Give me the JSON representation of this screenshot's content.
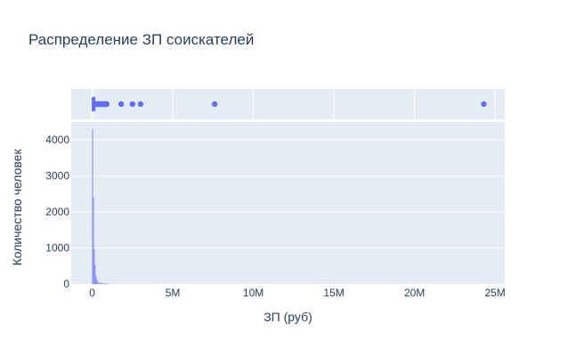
{
  "chart_data": {
    "type": "histogram",
    "title": "Распределение ЗП соискателей",
    "xlabel": "ЗП (руб)",
    "ylabel": "Количество человек",
    "xlim": [
      -1300000,
      25600000
    ],
    "ylim": [
      0,
      4500
    ],
    "x_ticks": [
      {
        "v": 0,
        "label": "0"
      },
      {
        "v": 5000000,
        "label": "5M"
      },
      {
        "v": 10000000,
        "label": "10M"
      },
      {
        "v": 15000000,
        "label": "15M"
      },
      {
        "v": 20000000,
        "label": "20M"
      },
      {
        "v": 25000000,
        "label": "25M"
      }
    ],
    "y_ticks": [
      {
        "v": 0,
        "label": "0"
      },
      {
        "v": 1000,
        "label": "1000"
      },
      {
        "v": 2000,
        "label": "2000"
      },
      {
        "v": 3000,
        "label": "3000"
      },
      {
        "v": 4000,
        "label": "4000"
      }
    ],
    "histogram": {
      "color": "#636efa",
      "bins": [
        {
          "x0": 0,
          "x1": 50000,
          "count": 4300
        },
        {
          "x0": 50000,
          "x1": 100000,
          "count": 2400
        },
        {
          "x0": 100000,
          "x1": 150000,
          "count": 950
        },
        {
          "x0": 150000,
          "x1": 200000,
          "count": 520
        },
        {
          "x0": 200000,
          "x1": 250000,
          "count": 220
        },
        {
          "x0": 250000,
          "x1": 300000,
          "count": 120
        },
        {
          "x0": 300000,
          "x1": 400000,
          "count": 60
        },
        {
          "x0": 400000,
          "x1": 600000,
          "count": 25
        },
        {
          "x0": 600000,
          "x1": 1000000,
          "count": 8
        }
      ]
    },
    "box": {
      "color": "#636efa",
      "q1": 30000,
      "median": 50000,
      "q3": 90000,
      "lower_fence": 10000,
      "upper_fence": 180000,
      "outliers": [
        200000,
        250000,
        300000,
        350000,
        400000,
        450000,
        500000,
        550000,
        600000,
        650000,
        700000,
        750000,
        800000,
        850000,
        900000,
        1800000,
        2500000,
        3000000,
        7600000,
        24300000
      ]
    }
  }
}
